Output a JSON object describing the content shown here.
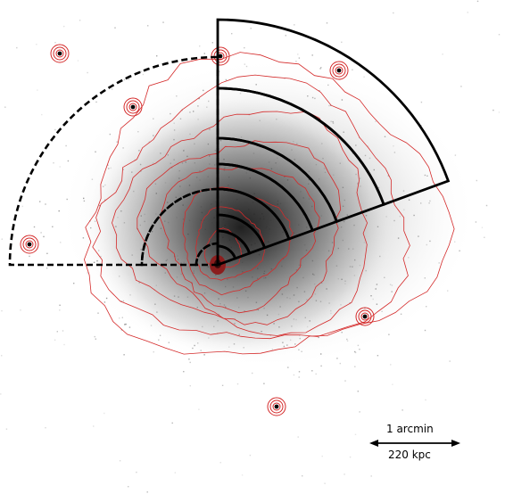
{
  "image": {
    "background_color": "#ffffff",
    "emission_color": "#1a1a1a",
    "contour_color": "#d42a2a",
    "core_color": "#8b1d1d",
    "region_color": "#000000",
    "point_sources": 7
  },
  "scale_bar": {
    "angular_label": "1 arcmin",
    "physical_label": "220 kpc"
  },
  "regions": {
    "solid_sector_annuli": 8,
    "dashed_sector_annuli": 3,
    "solid_style": "solid",
    "dashed_style": "dashed"
  }
}
